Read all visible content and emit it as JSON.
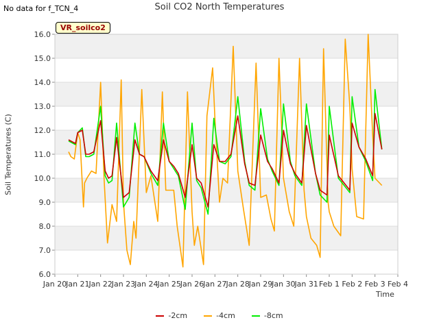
{
  "no_data_text": "No data for f_TCN_4",
  "chart_data": {
    "type": "line",
    "title": "Soil CO2 North Temperatures",
    "xlabel": "Time",
    "ylabel": "Soil Temperatures (C)",
    "station_label": "VR_soilco2",
    "ylim": [
      6.0,
      16.0
    ],
    "yticks": [
      "6.0",
      "7.0",
      "8.0",
      "9.0",
      "10.0",
      "11.0",
      "12.0",
      "13.0",
      "14.0",
      "15.0",
      "16.0"
    ],
    "xlim": [
      0,
      15
    ],
    "xticks": [
      "Jan 20",
      "Jan 21",
      "Jan 22",
      "Jan 23",
      "Jan 24",
      "Jan 25",
      "Jan 26",
      "Jan 27",
      "Jan 28",
      "Jan 29",
      "Jan 30",
      "Jan 31",
      "Feb 1",
      "Feb 2",
      "Feb 3",
      "Feb 4"
    ],
    "grid": true,
    "legend_position": "bottom",
    "series": [
      {
        "name": "-2cm",
        "color": "#cc0000",
        "x": [
          0.6,
          0.9,
          1.0,
          1.2,
          1.35,
          1.5,
          1.7,
          2.0,
          2.2,
          2.35,
          2.5,
          2.7,
          3.0,
          3.25,
          3.5,
          3.7,
          3.9,
          4.2,
          4.5,
          4.75,
          5.0,
          5.2,
          5.4,
          5.7,
          6.0,
          6.2,
          6.4,
          6.7,
          6.95,
          7.2,
          7.45,
          7.7,
          8.0,
          8.3,
          8.5,
          8.75,
          9.0,
          9.3,
          9.5,
          9.8,
          10.0,
          10.3,
          10.5,
          10.8,
          11.0,
          11.4,
          11.6,
          11.9,
          12.0,
          12.4,
          12.65,
          12.9,
          13.0,
          13.3,
          13.6,
          13.9,
          14.0,
          14.3
        ],
        "y": [
          11.6,
          11.45,
          11.9,
          12.0,
          11.0,
          11.0,
          11.1,
          12.4,
          10.3,
          10.0,
          10.1,
          11.7,
          9.2,
          9.4,
          11.6,
          11.0,
          10.9,
          10.3,
          9.9,
          11.6,
          10.7,
          10.5,
          10.2,
          9.2,
          11.4,
          10.0,
          9.8,
          8.8,
          11.4,
          10.7,
          10.7,
          11.0,
          12.6,
          10.6,
          9.8,
          9.7,
          11.8,
          10.7,
          10.4,
          9.8,
          12.0,
          10.6,
          10.2,
          9.8,
          12.2,
          10.2,
          9.5,
          9.3,
          11.8,
          10.1,
          9.8,
          9.5,
          12.3,
          11.3,
          10.8,
          10.1,
          12.7,
          11.2
        ]
      },
      {
        "name": "-4cm",
        "color": "#ffa500",
        "x": [
          0.6,
          0.7,
          0.85,
          1.0,
          1.1,
          1.25,
          1.3,
          1.4,
          1.6,
          1.8,
          2.0,
          2.15,
          2.3,
          2.5,
          2.7,
          2.9,
          3.0,
          3.15,
          3.3,
          3.45,
          3.55,
          3.8,
          4.0,
          4.2,
          4.5,
          4.7,
          4.85,
          5.0,
          5.2,
          5.35,
          5.6,
          5.8,
          6.0,
          6.1,
          6.25,
          6.5,
          6.65,
          6.9,
          7.0,
          7.2,
          7.35,
          7.55,
          7.8,
          8.0,
          8.25,
          8.5,
          8.8,
          9.0,
          9.25,
          9.45,
          9.6,
          9.8,
          10.0,
          10.25,
          10.45,
          10.7,
          10.9,
          11.0,
          11.2,
          11.45,
          11.6,
          11.75,
          11.95,
          12.0,
          12.2,
          12.5,
          12.7,
          12.9,
          13.0,
          13.2,
          13.5,
          13.7,
          13.9,
          14.0,
          14.3
        ],
        "y": [
          11.1,
          10.9,
          10.8,
          11.9,
          11.6,
          8.8,
          9.8,
          10.0,
          10.3,
          10.2,
          14.0,
          10.0,
          7.3,
          8.9,
          8.2,
          14.1,
          9.0,
          7.0,
          6.4,
          8.2,
          7.5,
          13.7,
          9.4,
          10.1,
          8.2,
          13.6,
          9.5,
          9.5,
          9.5,
          8.0,
          6.3,
          13.6,
          8.6,
          7.2,
          8.0,
          6.4,
          12.6,
          14.6,
          12.5,
          9.0,
          10.0,
          9.8,
          15.5,
          10.3,
          8.7,
          7.2,
          14.8,
          9.2,
          9.3,
          8.3,
          7.8,
          15.0,
          10.0,
          8.6,
          8.0,
          15.0,
          9.5,
          8.4,
          7.5,
          7.2,
          6.7,
          15.4,
          9.0,
          8.6,
          8.0,
          7.6,
          15.8,
          13.0,
          10.4,
          8.4,
          8.3,
          16.0,
          11.8,
          10.0,
          9.7
        ]
      },
      {
        "name": "-8cm",
        "color": "#00ee00",
        "x": [
          0.6,
          0.9,
          1.0,
          1.2,
          1.35,
          1.5,
          1.7,
          2.0,
          2.2,
          2.35,
          2.5,
          2.7,
          3.0,
          3.25,
          3.5,
          3.7,
          3.9,
          4.2,
          4.5,
          4.75,
          5.0,
          5.2,
          5.4,
          5.7,
          6.0,
          6.2,
          6.4,
          6.7,
          6.95,
          7.2,
          7.45,
          7.7,
          8.0,
          8.3,
          8.5,
          8.75,
          9.0,
          9.3,
          9.5,
          9.8,
          10.0,
          10.3,
          10.5,
          10.8,
          11.0,
          11.4,
          11.6,
          11.9,
          12.0,
          12.4,
          12.65,
          12.9,
          13.0,
          13.3,
          13.6,
          13.9,
          14.0,
          14.3
        ],
        "y": [
          11.55,
          11.4,
          11.9,
          12.1,
          10.9,
          10.9,
          11.0,
          13.0,
          10.1,
          9.8,
          9.9,
          12.3,
          8.8,
          9.2,
          12.3,
          11.0,
          10.9,
          10.2,
          9.7,
          12.3,
          10.7,
          10.4,
          10.1,
          8.7,
          12.3,
          9.9,
          9.6,
          8.5,
          12.5,
          10.7,
          10.6,
          10.9,
          13.4,
          10.7,
          9.7,
          9.5,
          12.9,
          10.8,
          10.3,
          9.7,
          13.1,
          10.7,
          10.1,
          9.7,
          13.1,
          10.2,
          9.3,
          9.0,
          13.0,
          10.0,
          9.7,
          9.4,
          13.4,
          11.3,
          10.7,
          9.9,
          13.7,
          11.2
        ]
      }
    ]
  }
}
